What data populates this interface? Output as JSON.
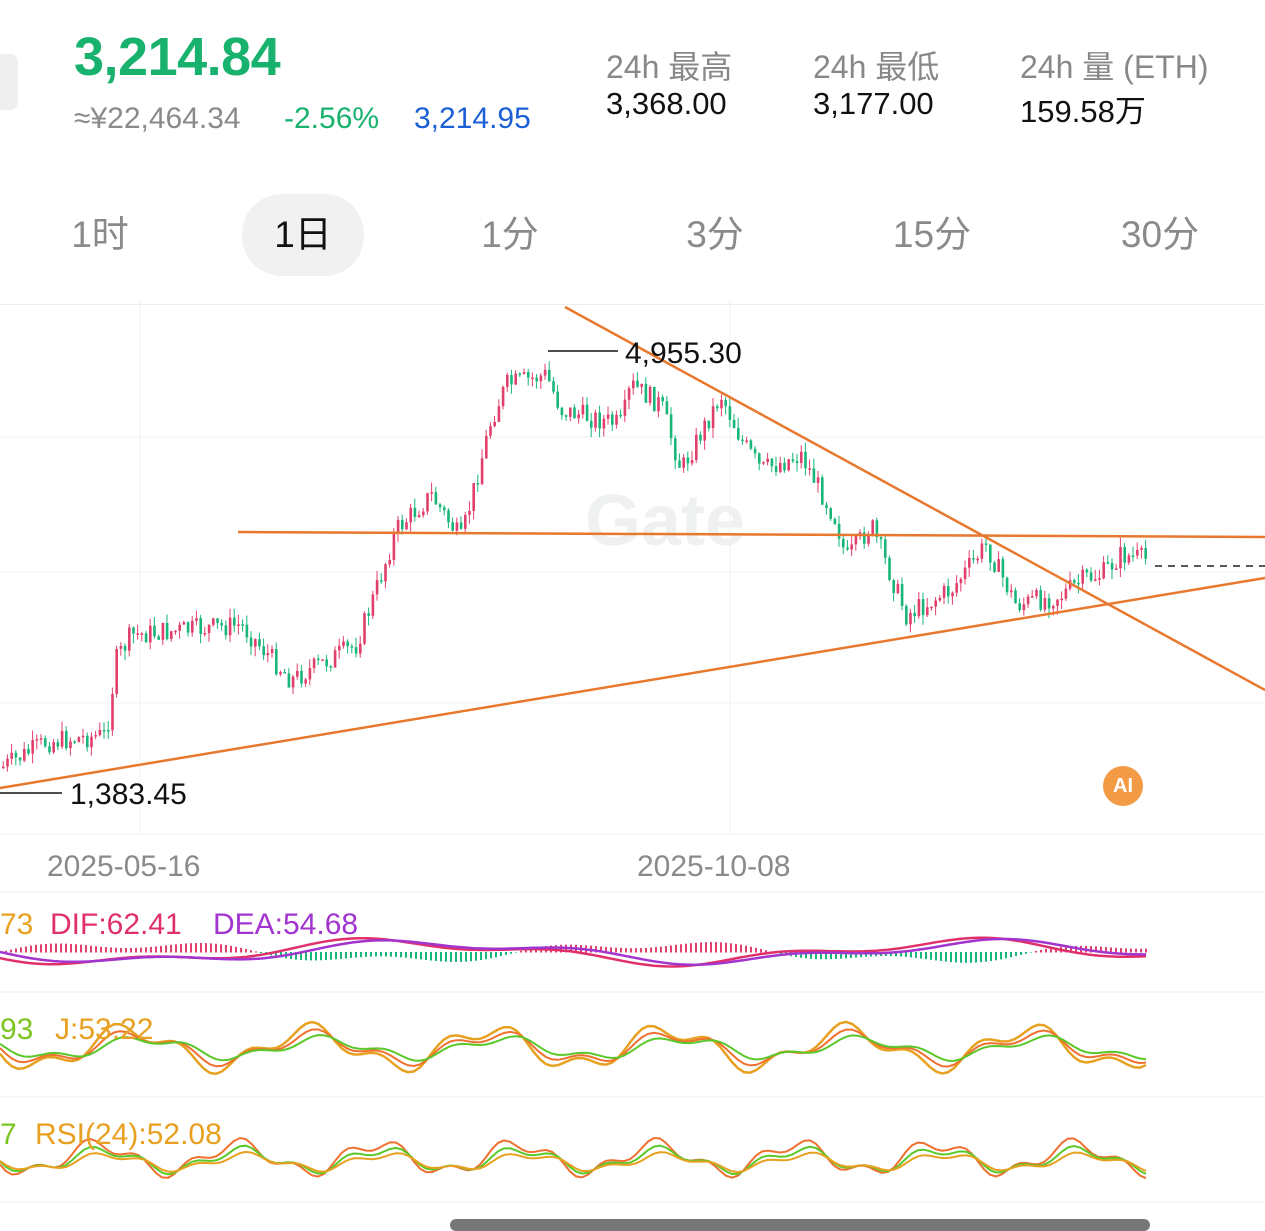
{
  "ticker": {
    "price": "3,214.84",
    "cny": "≈¥22,464.34",
    "change": "-2.56%",
    "mark": "3,214.95"
  },
  "stats": [
    {
      "label": "24h  最高",
      "value": "3,368.00"
    },
    {
      "label": "24h  最低",
      "value": "3,177.00"
    },
    {
      "label": "24h  量 (ETH)",
      "value": "159.58万"
    }
  ],
  "tabs": [
    {
      "label": "1时",
      "active": false
    },
    {
      "label": "1日",
      "active": true
    },
    {
      "label": "1分",
      "active": false
    },
    {
      "label": "3分",
      "active": false
    },
    {
      "label": "15分",
      "active": false
    },
    {
      "label": "30分",
      "active": false
    }
  ],
  "chart": {
    "watermark": "Gate",
    "high_label": "4,955.30",
    "low_label": "1,383.45",
    "x_dates": [
      "2025-05-16",
      "2025-10-08"
    ],
    "ai_badge": "AI",
    "colors": {
      "up": "#e0406b",
      "down": "#19b67a",
      "trendline": "#e8782e",
      "blue": "#1b5fd6"
    }
  },
  "indicators": {
    "macd": {
      "prefix": "73",
      "dif": "DIF:62.41",
      "dea": "DEA:54.68"
    },
    "kdj": {
      "prefix": "93",
      "j": "J:53.22"
    },
    "rsi": {
      "prefix": "7",
      "label": "RSI(24):52.08"
    }
  }
}
